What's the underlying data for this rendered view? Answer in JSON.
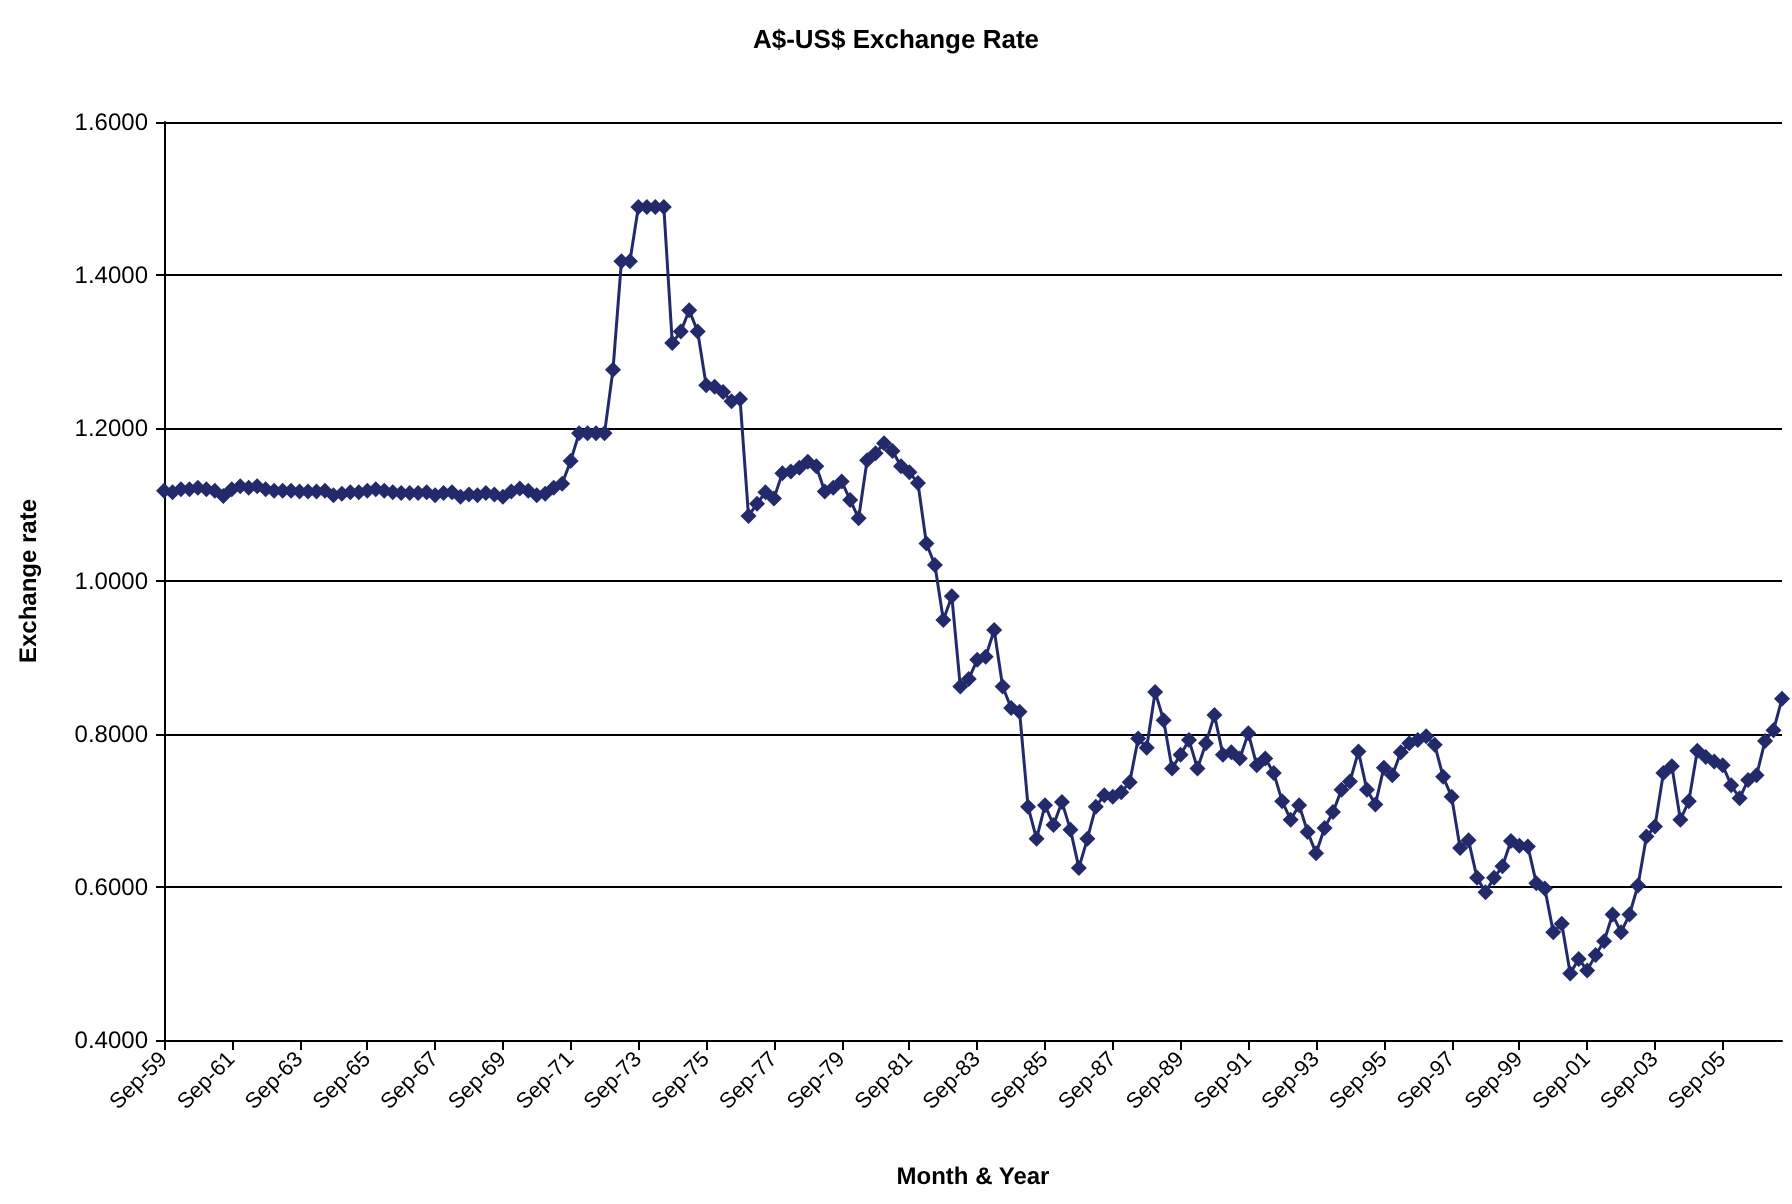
{
  "chart_data": {
    "type": "line",
    "title": "A$-US$ Exchange Rate",
    "xlabel": "Month & Year",
    "ylabel": "Exchange rate",
    "categories": [
      "Sep-59",
      null,
      null,
      null,
      null,
      null,
      null,
      null,
      "Sep-61",
      null,
      null,
      null,
      null,
      null,
      null,
      null,
      "Sep-63",
      null,
      null,
      null,
      null,
      null,
      null,
      null,
      "Sep-65",
      null,
      null,
      null,
      null,
      null,
      null,
      null,
      "Sep-67",
      null,
      null,
      null,
      null,
      null,
      null,
      null,
      "Sep-69",
      null,
      null,
      null,
      null,
      null,
      null,
      null,
      "Sep-71",
      null,
      null,
      null,
      null,
      null,
      null,
      null,
      "Sep-73",
      null,
      null,
      null,
      null,
      null,
      null,
      null,
      "Sep-75",
      null,
      null,
      null,
      null,
      null,
      null,
      null,
      "Sep-77",
      null,
      null,
      null,
      null,
      null,
      null,
      null,
      "Sep-79",
      null,
      null,
      null,
      null,
      null,
      null,
      null,
      "Sep-81",
      null,
      null,
      null,
      null,
      null,
      null,
      null,
      "Sep-83",
      null,
      null,
      null,
      null,
      null,
      null,
      null,
      "Sep-85",
      null,
      null,
      null,
      null,
      null,
      null,
      null,
      "Sep-87",
      null,
      null,
      null,
      null,
      null,
      null,
      null,
      "Sep-89",
      null,
      null,
      null,
      null,
      null,
      null,
      null,
      "Sep-91",
      null,
      null,
      null,
      null,
      null,
      null,
      null,
      "Sep-93",
      null,
      null,
      null,
      null,
      null,
      null,
      null,
      "Sep-95",
      null,
      null,
      null,
      null,
      null,
      null,
      null,
      "Sep-97",
      null,
      null,
      null,
      null,
      null,
      null,
      null,
      "Sep-99",
      null,
      null,
      null,
      null,
      null,
      null,
      null,
      "Sep-01",
      null,
      null,
      null,
      null,
      null,
      null,
      null,
      "Sep-03",
      null,
      null,
      null,
      null,
      null,
      null,
      null,
      "Sep-05",
      null,
      null,
      null,
      null,
      null,
      null,
      null
    ],
    "series": [
      {
        "color": "#222a6b",
        "values": [
          1.118,
          1.116,
          1.12,
          1.12,
          1.122,
          1.12,
          1.118,
          1.111,
          1.12,
          1.124,
          1.122,
          1.124,
          1.12,
          1.118,
          1.118,
          1.118,
          1.117,
          1.117,
          1.117,
          1.118,
          1.112,
          1.114,
          1.116,
          1.116,
          1.118,
          1.12,
          1.118,
          1.116,
          1.115,
          1.115,
          1.115,
          1.116,
          1.112,
          1.115,
          1.116,
          1.11,
          1.113,
          1.112,
          1.115,
          1.113,
          1.11,
          1.117,
          1.121,
          1.118,
          1.112,
          1.114,
          1.122,
          1.127,
          1.157,
          1.193,
          1.193,
          1.193,
          1.193,
          1.276,
          1.418,
          1.418,
          1.489,
          1.489,
          1.489,
          1.489,
          1.311,
          1.326,
          1.354,
          1.326,
          1.256,
          1.254,
          1.247,
          1.235,
          1.238,
          1.085,
          1.101,
          1.116,
          1.108,
          1.141,
          1.143,
          1.148,
          1.156,
          1.15,
          1.117,
          1.122,
          1.13,
          1.106,
          1.082,
          1.158,
          1.167,
          1.18,
          1.17,
          1.15,
          1.142,
          1.128,
          1.049,
          1.021,
          0.949,
          0.98,
          0.862,
          0.872,
          0.897,
          0.901,
          0.936,
          0.862,
          0.834,
          0.829,
          0.705,
          0.663,
          0.707,
          0.681,
          0.711,
          0.675,
          0.625,
          0.663,
          0.705,
          0.72,
          0.718,
          0.724,
          0.737,
          0.794,
          0.782,
          0.855,
          0.818,
          0.755,
          0.773,
          0.792,
          0.755,
          0.788,
          0.825,
          0.773,
          0.776,
          0.768,
          0.801,
          0.759,
          0.768,
          0.749,
          0.712,
          0.688,
          0.707,
          0.672,
          0.644,
          0.677,
          0.698,
          0.727,
          0.738,
          0.777,
          0.727,
          0.708,
          0.756,
          0.746,
          0.776,
          0.788,
          0.792,
          0.797,
          0.786,
          0.744,
          0.718,
          0.651,
          0.661,
          0.612,
          0.593,
          0.612,
          0.627,
          0.66,
          0.654,
          0.653,
          0.605,
          0.598,
          0.541,
          0.552,
          0.487,
          0.506,
          0.491,
          0.511,
          0.529,
          0.564,
          0.541,
          0.564,
          0.602,
          0.666,
          0.679,
          0.749,
          0.758,
          0.688,
          0.712,
          0.778,
          0.77,
          0.764,
          0.759,
          0.733,
          0.716,
          0.74,
          0.746,
          0.791,
          0.805,
          0.846
        ]
      }
    ],
    "ylim": [
      0.4,
      1.6
    ],
    "yticks": [
      {
        "value": 0.4,
        "label": "0.4000"
      },
      {
        "value": 0.6,
        "label": "0.6000"
      },
      {
        "value": 0.8,
        "label": "0.8000"
      },
      {
        "value": 1.0,
        "label": "1.0000"
      },
      {
        "value": 1.2,
        "label": "1.2000"
      },
      {
        "value": 1.4,
        "label": "1.4000"
      },
      {
        "value": 1.6,
        "label": "1.6000"
      }
    ],
    "grid": "y",
    "marker": "diamond",
    "line_style": "solid"
  }
}
